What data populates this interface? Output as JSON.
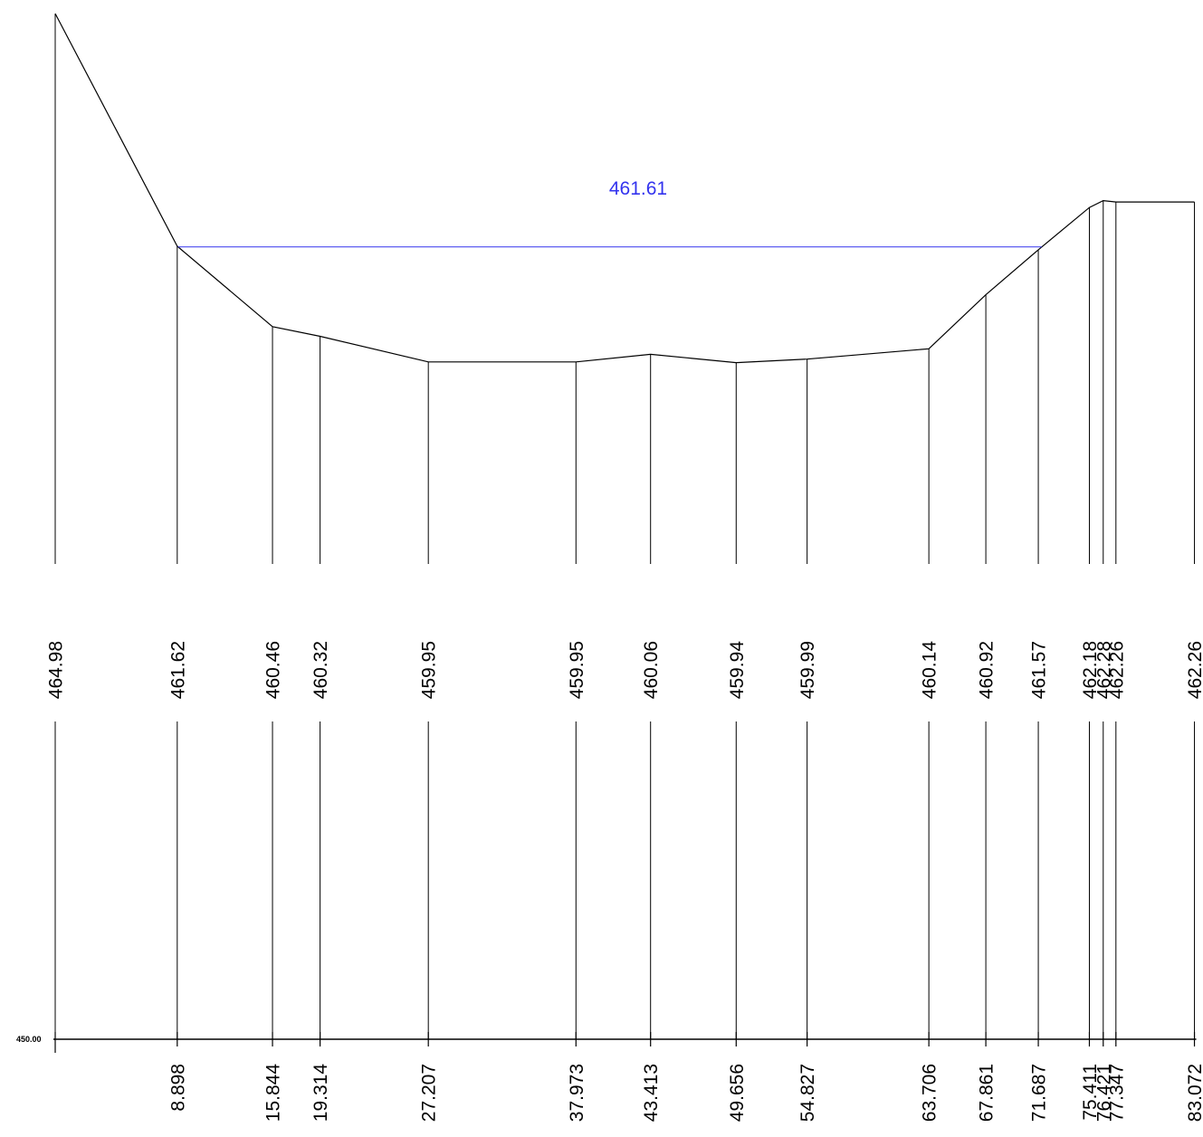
{
  "water_level": {
    "label": "461.61",
    "value": 461.61,
    "color": "#3333ee"
  },
  "datum": {
    "label": "450.00",
    "value": 450.0
  },
  "line_color": "#000000",
  "stations": [
    {
      "distance": 0,
      "elevation": 464.98,
      "distance_label": "",
      "elevation_label": "464.98"
    },
    {
      "distance": 8.898,
      "elevation": 461.62,
      "distance_label": "8.898",
      "elevation_label": "461.62"
    },
    {
      "distance": 15.844,
      "elevation": 460.46,
      "distance_label": "15.844",
      "elevation_label": "460.46"
    },
    {
      "distance": 19.314,
      "elevation": 460.32,
      "distance_label": "19.314",
      "elevation_label": "460.32"
    },
    {
      "distance": 27.207,
      "elevation": 459.95,
      "distance_label": "27.207",
      "elevation_label": "459.95"
    },
    {
      "distance": 37.973,
      "elevation": 459.95,
      "distance_label": "37.973",
      "elevation_label": "459.95"
    },
    {
      "distance": 43.413,
      "elevation": 460.06,
      "distance_label": "43.413",
      "elevation_label": "460.06"
    },
    {
      "distance": 49.656,
      "elevation": 459.94,
      "distance_label": "49.656",
      "elevation_label": "459.94"
    },
    {
      "distance": 54.827,
      "elevation": 459.99,
      "distance_label": "54.827",
      "elevation_label": "459.99"
    },
    {
      "distance": 63.706,
      "elevation": 460.14,
      "distance_label": "63.706",
      "elevation_label": "460.14"
    },
    {
      "distance": 67.861,
      "elevation": 460.92,
      "distance_label": "67.861",
      "elevation_label": "460.92"
    },
    {
      "distance": 71.687,
      "elevation": 461.57,
      "distance_label": "71.687",
      "elevation_label": "461.57"
    },
    {
      "distance": 75.411,
      "elevation": 462.18,
      "distance_label": "75.411",
      "elevation_label": "462.18"
    },
    {
      "distance": 76.421,
      "elevation": 462.28,
      "distance_label": "76.421",
      "elevation_label": "462.28"
    },
    {
      "distance": 77.347,
      "elevation": 462.26,
      "distance_label": "77.347",
      "elevation_label": "462.26"
    },
    {
      "distance": 83.072,
      "elevation": 462.26,
      "distance_label": "83.072",
      "elevation_label": "462.26"
    }
  ]
}
